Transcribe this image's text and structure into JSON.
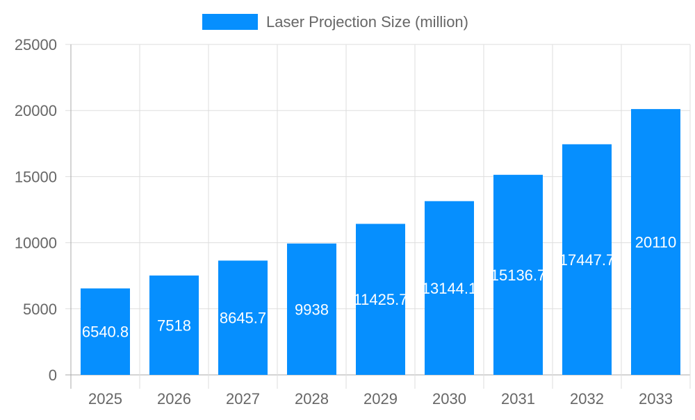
{
  "chart_data": {
    "type": "bar",
    "categories": [
      "2025",
      "2026",
      "2027",
      "2028",
      "2029",
      "2030",
      "2031",
      "2032",
      "2033"
    ],
    "series": [
      {
        "name": "Laser Projection Size (million)",
        "values": [
          6540.8,
          7518,
          8645.7,
          9938,
          11425.7,
          13144.1,
          15136.7,
          17447.7,
          20110
        ],
        "color": "#068ffe"
      }
    ],
    "ylim": [
      0,
      25000
    ],
    "yticks": [
      0,
      5000,
      10000,
      15000,
      20000,
      25000
    ],
    "grid": true,
    "legend": "top-center",
    "data_labels": true
  }
}
